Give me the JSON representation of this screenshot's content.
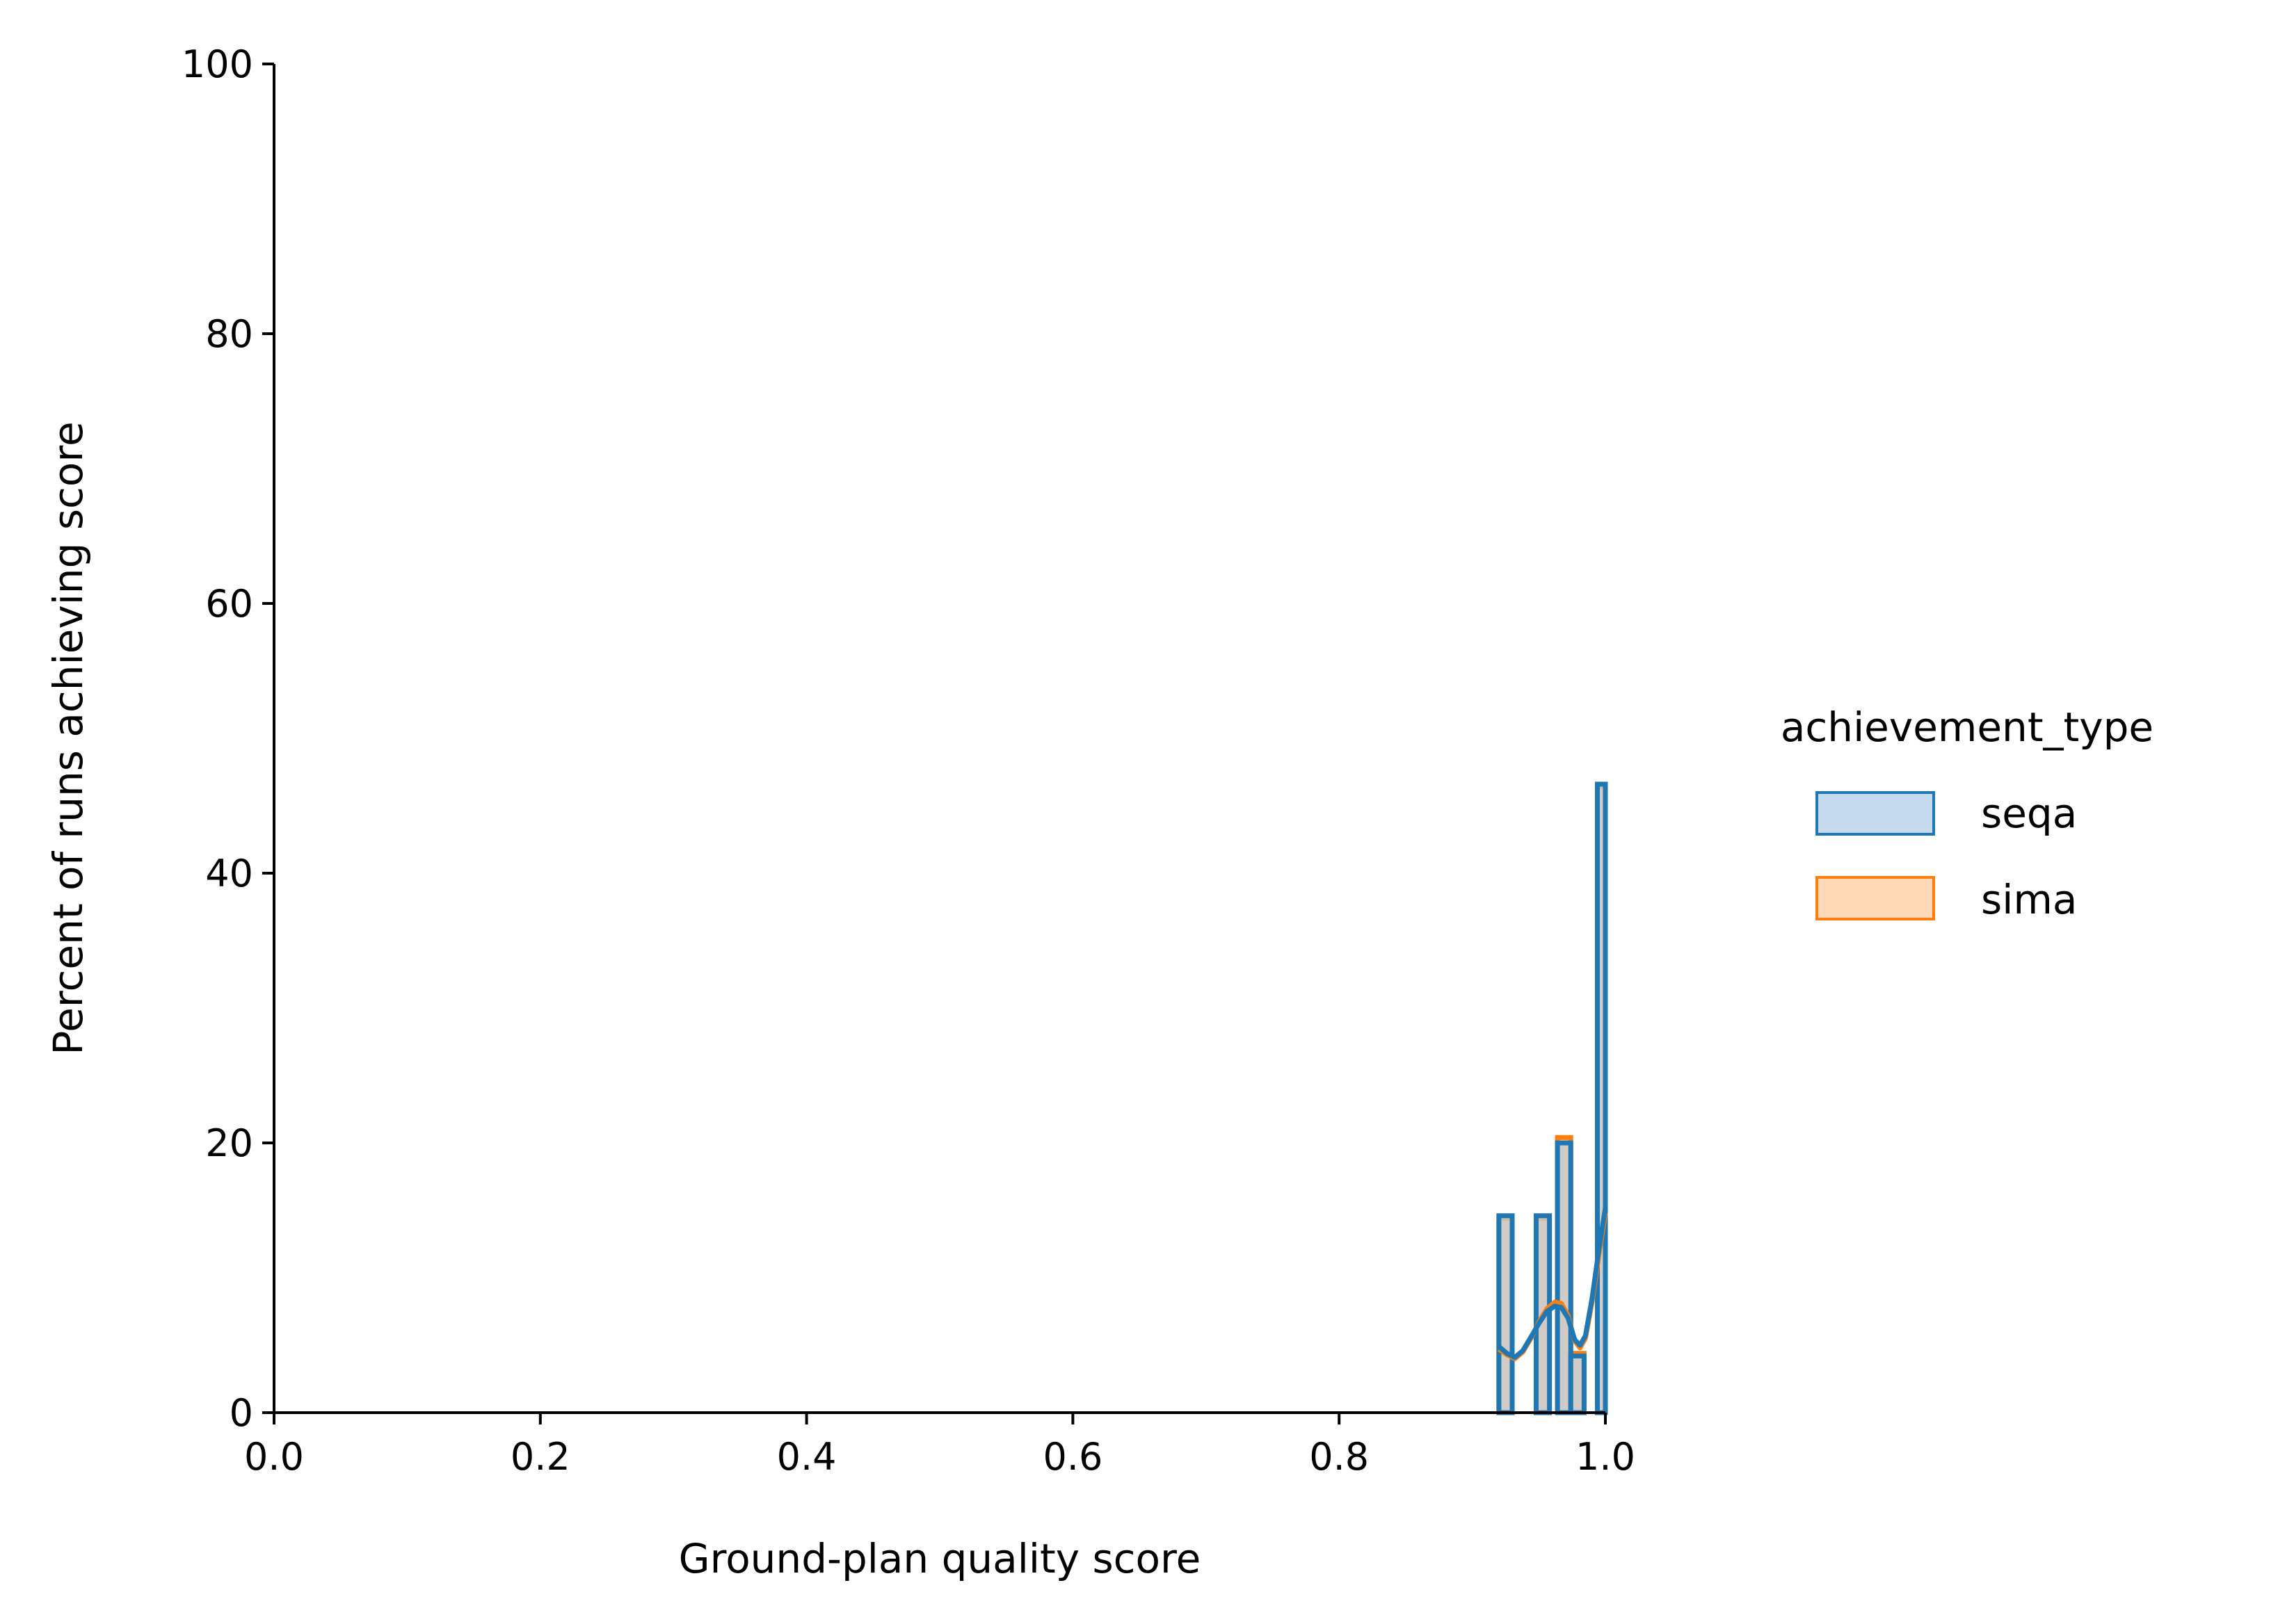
{
  "chart_data": {
    "type": "histogram",
    "xlabel": "Ground-plan quality score",
    "ylabel": "Percent of runs achieving score",
    "xlim": [
      0.0,
      1.0
    ],
    "ylim": [
      0,
      100
    ],
    "x_ticks": [
      "0.0",
      "0.2",
      "0.4",
      "0.6",
      "0.8",
      "1.0"
    ],
    "y_ticks": [
      "0",
      "20",
      "40",
      "60",
      "80",
      "100"
    ],
    "x_tick_values": [
      0.0,
      0.2,
      0.4,
      0.6,
      0.8,
      1.0
    ],
    "y_tick_values": [
      0,
      20,
      40,
      60,
      80,
      100
    ],
    "grid": false,
    "legend": {
      "title": "achievement_type",
      "placement": "right",
      "entries": [
        "seqa",
        "sima"
      ]
    },
    "colors": {
      "seqa_edge": "#1f77b4",
      "seqa_fill": "#c6dbef",
      "sima_edge": "#ff7f0e",
      "sima_fill": "#fdd9b8",
      "overlap_fill": "#c8c8c8"
    },
    "series": [
      {
        "name": "seqa",
        "bins": [
          {
            "x0": 0.92,
            "x1": 0.93,
            "value": 14.6
          },
          {
            "x0": 0.948,
            "x1": 0.958,
            "value": 14.6
          },
          {
            "x0": 0.964,
            "x1": 0.974,
            "value": 20.0
          },
          {
            "x0": 0.974,
            "x1": 0.984,
            "value": 4.2
          },
          {
            "x0": 0.994,
            "x1": 1.0,
            "value": 46.6
          }
        ],
        "kde": [
          [
            0.92,
            4.9
          ],
          [
            0.926,
            4.4
          ],
          [
            0.932,
            4.1
          ],
          [
            0.938,
            4.6
          ],
          [
            0.944,
            5.6
          ],
          [
            0.95,
            6.6
          ],
          [
            0.956,
            7.5
          ],
          [
            0.962,
            7.9
          ],
          [
            0.967,
            7.8
          ],
          [
            0.972,
            7.0
          ],
          [
            0.977,
            5.4
          ],
          [
            0.981,
            5.0
          ],
          [
            0.985,
            5.7
          ],
          [
            0.99,
            8.5
          ],
          [
            0.995,
            12.0
          ],
          [
            1.0,
            15.2
          ]
        ]
      },
      {
        "name": "sima",
        "bins": [
          {
            "x0": 0.92,
            "x1": 0.93,
            "value": 14.4
          },
          {
            "x0": 0.948,
            "x1": 0.958,
            "value": 14.4
          },
          {
            "x0": 0.964,
            "x1": 0.974,
            "value": 20.4
          },
          {
            "x0": 0.974,
            "x1": 0.984,
            "value": 4.4
          },
          {
            "x0": 0.994,
            "x1": 1.0,
            "value": 46.4
          }
        ],
        "kde": [
          [
            0.92,
            4.7
          ],
          [
            0.926,
            4.3
          ],
          [
            0.932,
            4.0
          ],
          [
            0.938,
            4.5
          ],
          [
            0.944,
            5.5
          ],
          [
            0.95,
            6.7
          ],
          [
            0.956,
            7.7
          ],
          [
            0.962,
            8.2
          ],
          [
            0.967,
            8.1
          ],
          [
            0.972,
            7.2
          ],
          [
            0.977,
            5.3
          ],
          [
            0.981,
            4.8
          ],
          [
            0.985,
            5.5
          ],
          [
            0.99,
            8.2
          ],
          [
            0.995,
            11.6
          ],
          [
            1.0,
            14.8
          ]
        ]
      }
    ]
  }
}
